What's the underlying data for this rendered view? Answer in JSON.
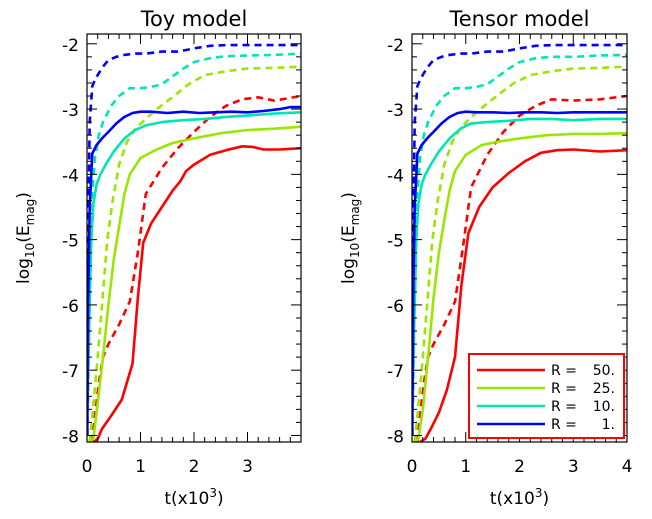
{
  "chart_data": [
    {
      "type": "line",
      "title": "Toy model",
      "xlabel": "t(x10",
      "xlabel_sup": "3",
      "xlabel_close": ")",
      "ylabel_base": "log",
      "ylabel_sub": "10",
      "ylabel_open": "(E",
      "ylabel_sub2": "mag",
      "ylabel_close": ")",
      "xlim": [
        0,
        4
      ],
      "ylim": [
        -8.1,
        -1.85
      ],
      "xticks": [
        0,
        1,
        2,
        3
      ],
      "xtick_labels": [
        "0",
        "1",
        "2",
        "3"
      ],
      "yticks": [
        -8,
        -7,
        -6,
        -5,
        -4,
        -3,
        -2
      ],
      "ytick_labels": [
        "-8",
        "-7",
        "-6",
        "-5",
        "-4",
        "-3",
        "-2"
      ],
      "legend": null,
      "series": [
        {
          "group": "R = 50.",
          "color": "#ff0000",
          "style": "solid",
          "x": [
            0.13,
            0.2,
            0.28,
            0.45,
            0.65,
            0.85,
            0.95,
            1.05,
            1.2,
            1.4,
            1.6,
            1.75,
            1.85,
            2.0,
            2.3,
            2.6,
            2.9,
            3.1,
            3.3,
            3.6,
            4.0
          ],
          "y": [
            -8.1,
            -8.05,
            -7.9,
            -7.7,
            -7.45,
            -6.9,
            -5.9,
            -5.05,
            -4.75,
            -4.5,
            -4.25,
            -4.1,
            -3.95,
            -3.85,
            -3.7,
            -3.63,
            -3.57,
            -3.58,
            -3.62,
            -3.62,
            -3.6
          ]
        },
        {
          "group": "R = 50.",
          "color": "#ff0000",
          "style": "dashed",
          "x": [
            0.1,
            0.15,
            0.22,
            0.3,
            0.4,
            0.6,
            0.8,
            0.95,
            1.1,
            1.4,
            1.7,
            2.0,
            2.3,
            2.6,
            2.9,
            3.2,
            3.5,
            4.0
          ],
          "y": [
            -8.1,
            -7.7,
            -7.2,
            -6.8,
            -6.6,
            -6.3,
            -5.95,
            -5.2,
            -4.3,
            -3.9,
            -3.6,
            -3.35,
            -3.12,
            -2.95,
            -2.85,
            -2.82,
            -2.87,
            -2.8
          ]
        },
        {
          "group": "R = 25.",
          "color": "#99e600",
          "style": "solid",
          "x": [
            0.05,
            0.12,
            0.2,
            0.3,
            0.4,
            0.5,
            0.6,
            0.7,
            0.8,
            1.0,
            1.3,
            1.6,
            2.0,
            2.5,
            3.0,
            3.5,
            4.0
          ],
          "y": [
            -8.1,
            -8.05,
            -7.5,
            -6.8,
            -6.0,
            -5.3,
            -4.8,
            -4.3,
            -4.0,
            -3.75,
            -3.62,
            -3.52,
            -3.45,
            -3.37,
            -3.32,
            -3.3,
            -3.27
          ]
        },
        {
          "group": "R = 25.",
          "color": "#99e600",
          "style": "dashed",
          "x": [
            0.05,
            0.1,
            0.18,
            0.28,
            0.38,
            0.48,
            0.6,
            0.75,
            0.9,
            1.1,
            1.3,
            1.5,
            1.7,
            1.9,
            2.2,
            2.6,
            3.0,
            3.5,
            4.0
          ],
          "y": [
            -8.1,
            -7.7,
            -7.0,
            -6.0,
            -5.0,
            -4.4,
            -3.85,
            -3.5,
            -3.3,
            -3.15,
            -3.0,
            -2.88,
            -2.75,
            -2.62,
            -2.48,
            -2.42,
            -2.38,
            -2.37,
            -2.35
          ]
        },
        {
          "group": "R = 10.",
          "color": "#00e6b3",
          "style": "solid",
          "x": [
            0.02,
            0.05,
            0.08,
            0.12,
            0.18,
            0.25,
            0.35,
            0.5,
            0.7,
            0.9,
            1.1,
            1.4,
            1.8,
            2.2,
            2.6,
            3.0,
            3.5,
            4.0
          ],
          "y": [
            -7.0,
            -6.0,
            -5.0,
            -4.45,
            -4.15,
            -4.0,
            -3.85,
            -3.65,
            -3.45,
            -3.32,
            -3.25,
            -3.2,
            -3.17,
            -3.15,
            -3.12,
            -3.1,
            -3.07,
            -3.05
          ]
        },
        {
          "group": "R = 10.",
          "color": "#00e6b3",
          "style": "dashed",
          "x": [
            0.02,
            0.05,
            0.1,
            0.15,
            0.22,
            0.3,
            0.45,
            0.6,
            0.8,
            1.0,
            1.2,
            1.4,
            1.6,
            1.8,
            2.0,
            2.3,
            2.6,
            3.0,
            3.5,
            4.0
          ],
          "y": [
            -7.5,
            -5.5,
            -4.3,
            -3.75,
            -3.4,
            -3.2,
            -2.95,
            -2.8,
            -2.68,
            -2.68,
            -2.66,
            -2.62,
            -2.5,
            -2.38,
            -2.28,
            -2.22,
            -2.19,
            -2.18,
            -2.17,
            -2.15
          ]
        },
        {
          "group": "R = 1.",
          "color": "#0000ff",
          "style": "solid",
          "x": [
            0.005,
            0.02,
            0.05,
            0.1,
            0.18,
            0.28,
            0.4,
            0.55,
            0.7,
            0.85,
            1.0,
            1.2,
            1.5,
            1.8,
            2.1,
            2.4,
            2.7,
            3.0,
            3.3,
            3.6,
            3.8,
            4.0
          ],
          "y": [
            -8.0,
            -6.0,
            -4.5,
            -3.68,
            -3.55,
            -3.45,
            -3.35,
            -3.22,
            -3.12,
            -3.06,
            -3.04,
            -3.04,
            -3.06,
            -3.04,
            -3.06,
            -3.05,
            -3.04,
            -3.05,
            -3.03,
            -3.0,
            -2.97,
            -2.97
          ]
        },
        {
          "group": "R = 1.",
          "color": "#0000ff",
          "style": "dashed",
          "x": [
            0.005,
            0.02,
            0.05,
            0.1,
            0.15,
            0.22,
            0.3,
            0.4,
            0.55,
            0.7,
            0.9,
            1.1,
            1.4,
            1.7,
            2.0,
            2.3,
            2.6,
            3.0,
            3.5,
            4.0
          ],
          "y": [
            -8.0,
            -5.0,
            -3.2,
            -2.65,
            -2.55,
            -2.45,
            -2.35,
            -2.25,
            -2.2,
            -2.17,
            -2.15,
            -2.15,
            -2.12,
            -2.12,
            -2.07,
            -2.03,
            -2.02,
            -2.02,
            -2.02,
            -2.02
          ]
        }
      ]
    },
    {
      "type": "line",
      "title": "Tensor model",
      "xlabel": "t(x10",
      "xlabel_sup": "3",
      "xlabel_close": ")",
      "ylabel_base": "log",
      "ylabel_sub": "10",
      "ylabel_open": "(E",
      "ylabel_sub2": "mag",
      "ylabel_close": ")",
      "xlim": [
        0,
        4
      ],
      "ylim": [
        -8.1,
        -1.85
      ],
      "xticks": [
        0,
        1,
        2,
        3,
        4
      ],
      "xtick_labels": [
        "0",
        "1",
        "2",
        "3",
        "4"
      ],
      "yticks": [
        -8,
        -7,
        -6,
        -5,
        -4,
        -3,
        -2
      ],
      "ytick_labels": [
        "-8",
        "-7",
        "-6",
        "-5",
        "-4",
        "-3",
        "-2"
      ],
      "legend": {
        "placement": "bottom-right",
        "entries": [
          {
            "prefix": "R =",
            "value": "50.",
            "color": "#ff0000"
          },
          {
            "prefix": "R =",
            "value": "25.",
            "color": "#99e600"
          },
          {
            "prefix": "R =",
            "value": "10.",
            "color": "#00e6b3"
          },
          {
            "prefix": "R =",
            "value": "1.",
            "color": "#0000ff"
          }
        ]
      },
      "series": [
        {
          "group": "R = 50.",
          "color": "#ff0000",
          "style": "solid",
          "x": [
            0.15,
            0.25,
            0.35,
            0.5,
            0.65,
            0.8,
            0.92,
            1.05,
            1.25,
            1.5,
            1.8,
            2.1,
            2.4,
            2.7,
            3.0,
            3.5,
            4.0
          ],
          "y": [
            -8.1,
            -8.05,
            -7.9,
            -7.65,
            -7.3,
            -6.8,
            -5.7,
            -4.9,
            -4.5,
            -4.2,
            -3.98,
            -3.8,
            -3.67,
            -3.63,
            -3.62,
            -3.65,
            -3.63
          ]
        },
        {
          "group": "R = 50.",
          "color": "#ff0000",
          "style": "dashed",
          "x": [
            0.1,
            0.15,
            0.22,
            0.3,
            0.4,
            0.6,
            0.8,
            0.95,
            1.1,
            1.4,
            1.7,
            2.0,
            2.3,
            2.6,
            3.0,
            3.5,
            4.0
          ],
          "y": [
            -8.1,
            -7.7,
            -7.2,
            -6.8,
            -6.6,
            -6.3,
            -5.95,
            -5.1,
            -4.2,
            -3.7,
            -3.35,
            -3.1,
            -2.95,
            -2.85,
            -2.87,
            -2.85,
            -2.8
          ]
        },
        {
          "group": "R = 25.",
          "color": "#99e600",
          "style": "solid",
          "x": [
            0.05,
            0.12,
            0.2,
            0.3,
            0.4,
            0.5,
            0.6,
            0.7,
            0.8,
            1.0,
            1.3,
            1.6,
            2.0,
            2.5,
            3.0,
            3.5,
            4.0
          ],
          "y": [
            -8.1,
            -8.05,
            -7.6,
            -6.8,
            -5.9,
            -5.2,
            -4.7,
            -4.25,
            -3.95,
            -3.7,
            -3.55,
            -3.5,
            -3.45,
            -3.4,
            -3.38,
            -3.38,
            -3.37
          ]
        },
        {
          "group": "R = 25.",
          "color": "#99e600",
          "style": "dashed",
          "x": [
            0.05,
            0.1,
            0.18,
            0.28,
            0.38,
            0.48,
            0.6,
            0.75,
            0.9,
            1.1,
            1.3,
            1.5,
            1.7,
            1.9,
            2.2,
            2.6,
            3.0,
            3.5,
            4.0
          ],
          "y": [
            -8.1,
            -7.7,
            -7.0,
            -6.0,
            -5.0,
            -4.4,
            -3.85,
            -3.5,
            -3.3,
            -3.12,
            -2.98,
            -2.85,
            -2.72,
            -2.6,
            -2.48,
            -2.42,
            -2.38,
            -2.37,
            -2.35
          ]
        },
        {
          "group": "R = 10.",
          "color": "#00e6b3",
          "style": "solid",
          "x": [
            0.02,
            0.05,
            0.08,
            0.12,
            0.18,
            0.25,
            0.35,
            0.5,
            0.7,
            0.9,
            1.1,
            1.4,
            1.8,
            2.2,
            2.6,
            3.0,
            3.5,
            4.0
          ],
          "y": [
            -7.0,
            -6.0,
            -5.0,
            -4.45,
            -4.15,
            -4.0,
            -3.85,
            -3.65,
            -3.45,
            -3.3,
            -3.22,
            -3.2,
            -3.18,
            -3.15,
            -3.15,
            -3.17,
            -3.15,
            -3.15
          ]
        },
        {
          "group": "R = 10.",
          "color": "#00e6b3",
          "style": "dashed",
          "x": [
            0.02,
            0.05,
            0.1,
            0.15,
            0.22,
            0.3,
            0.45,
            0.6,
            0.8,
            1.0,
            1.2,
            1.4,
            1.6,
            1.8,
            2.0,
            2.3,
            2.6,
            3.0,
            3.5,
            4.0
          ],
          "y": [
            -7.5,
            -5.5,
            -4.3,
            -3.75,
            -3.4,
            -3.2,
            -2.95,
            -2.8,
            -2.68,
            -2.68,
            -2.66,
            -2.62,
            -2.5,
            -2.38,
            -2.28,
            -2.22,
            -2.2,
            -2.2,
            -2.18,
            -2.17
          ]
        },
        {
          "group": "R = 1.",
          "color": "#0000ff",
          "style": "solid",
          "x": [
            0.005,
            0.02,
            0.05,
            0.1,
            0.18,
            0.28,
            0.4,
            0.55,
            0.7,
            0.85,
            1.0,
            1.2,
            1.5,
            1.8,
            2.1,
            2.4,
            2.7,
            3.0,
            3.3,
            3.6,
            4.0
          ],
          "y": [
            -8.0,
            -6.0,
            -4.5,
            -3.68,
            -3.55,
            -3.45,
            -3.35,
            -3.22,
            -3.12,
            -3.06,
            -3.04,
            -3.05,
            -3.05,
            -3.06,
            -3.05,
            -3.05,
            -3.06,
            -3.05,
            -3.05,
            -3.05,
            -3.05
          ]
        },
        {
          "group": "R = 1.",
          "color": "#0000ff",
          "style": "dashed",
          "x": [
            0.005,
            0.02,
            0.05,
            0.1,
            0.15,
            0.22,
            0.3,
            0.4,
            0.55,
            0.7,
            0.9,
            1.1,
            1.4,
            1.7,
            2.0,
            2.3,
            2.6,
            3.0,
            3.5,
            4.0
          ],
          "y": [
            -8.0,
            -5.0,
            -3.2,
            -2.65,
            -2.55,
            -2.45,
            -2.35,
            -2.25,
            -2.2,
            -2.17,
            -2.15,
            -2.15,
            -2.12,
            -2.12,
            -2.07,
            -2.03,
            -2.02,
            -2.02,
            -2.02,
            -2.02
          ]
        }
      ]
    }
  ]
}
